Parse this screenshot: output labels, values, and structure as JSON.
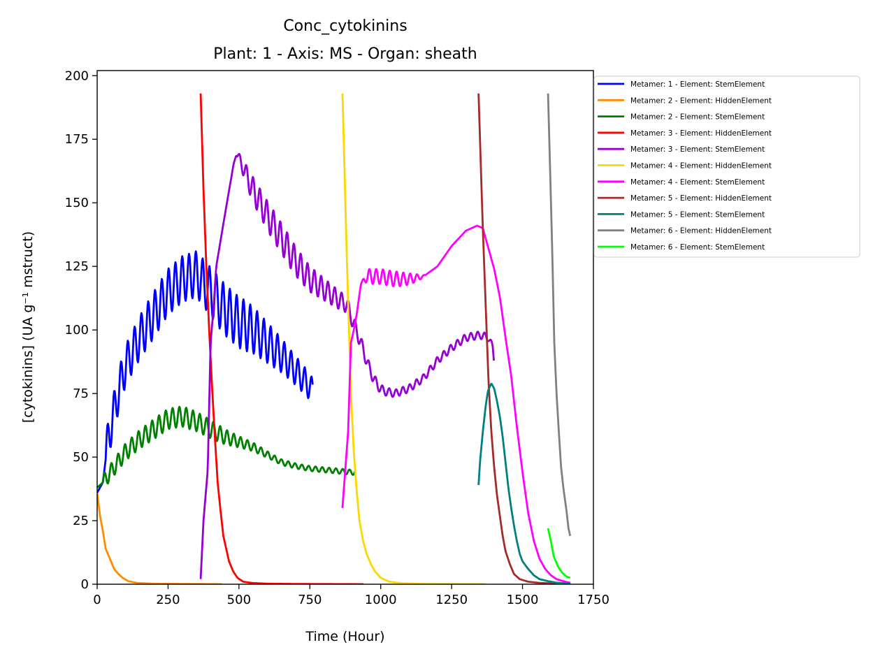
{
  "chart_data": {
    "type": "line",
    "title": "Conc_cytokinins",
    "subtitle": "Plant: 1 - Axis: MS - Organ: sheath",
    "xlabel": "Time (Hour)",
    "ylabel": "[cytokinins] (UA g⁻¹ mstruct)",
    "xlim": [
      0,
      1750
    ],
    "ylim": [
      0,
      202
    ],
    "x_ticks": [
      0,
      250,
      500,
      750,
      1000,
      1250,
      1500,
      1750
    ],
    "y_ticks": [
      0,
      25,
      50,
      75,
      100,
      125,
      150,
      175,
      200
    ],
    "x_tick_labels": [
      "0",
      "250",
      "500",
      "750",
      "1000",
      "1250",
      "1500",
      "1750"
    ],
    "y_tick_labels": [
      "0",
      "25",
      "50",
      "75",
      "100",
      "125",
      "150",
      "175",
      "200"
    ],
    "grid": false,
    "legend_position": "outside right, top",
    "series": [
      {
        "name": "Metamer: 1 - Element: StemElement",
        "color": "#0000ff",
        "osc": {
          "amp": [
            8,
            8,
            9,
            9,
            9,
            10,
            10,
            8,
            6,
            5
          ],
          "period": 24,
          "t0": 30,
          "t1": 760
        },
        "points": [
          [
            0,
            36
          ],
          [
            20,
            40
          ],
          [
            40,
            58
          ],
          [
            60,
            68
          ],
          [
            80,
            78
          ],
          [
            100,
            86
          ],
          [
            150,
            97
          ],
          [
            200,
            106
          ],
          [
            250,
            115
          ],
          [
            300,
            120
          ],
          [
            350,
            122
          ],
          [
            400,
            115
          ],
          [
            450,
            108
          ],
          [
            500,
            103
          ],
          [
            550,
            100
          ],
          [
            600,
            95
          ],
          [
            650,
            90
          ],
          [
            700,
            84
          ],
          [
            740,
            79
          ],
          [
            760,
            76
          ]
        ]
      },
      {
        "name": "Metamer: 2 - Element: HiddenElement",
        "color": "#ff8c00",
        "points": [
          [
            0,
            36
          ],
          [
            10,
            27
          ],
          [
            20,
            21
          ],
          [
            30,
            14
          ],
          [
            45,
            10
          ],
          [
            60,
            6
          ],
          [
            75,
            4
          ],
          [
            90,
            2.5
          ],
          [
            110,
            1.2
          ],
          [
            140,
            0.5
          ],
          [
            200,
            0.2
          ],
          [
            300,
            0.1
          ],
          [
            440,
            0
          ]
        ]
      },
      {
        "name": "Metamer: 2 - Element: StemElement",
        "color": "#008000",
        "osc": {
          "amp": [
            3,
            3.5,
            4,
            4,
            3.5,
            2,
            1.2,
            1,
            1,
            1
          ],
          "period": 24,
          "t0": 20,
          "t1": 910
        },
        "points": [
          [
            0,
            38
          ],
          [
            20,
            40
          ],
          [
            60,
            46
          ],
          [
            100,
            52
          ],
          [
            150,
            57
          ],
          [
            200,
            61
          ],
          [
            250,
            65
          ],
          [
            300,
            66
          ],
          [
            350,
            64
          ],
          [
            400,
            61
          ],
          [
            450,
            58
          ],
          [
            500,
            56
          ],
          [
            550,
            54
          ],
          [
            600,
            51
          ],
          [
            650,
            48
          ],
          [
            700,
            46.5
          ],
          [
            750,
            45.5
          ],
          [
            800,
            45
          ],
          [
            850,
            44.5
          ],
          [
            900,
            44
          ],
          [
            910,
            44
          ]
        ]
      },
      {
        "name": "Metamer: 3 - Element: HiddenElement",
        "color": "#ff0000",
        "points": [
          [
            365,
            193
          ],
          [
            375,
            155
          ],
          [
            385,
            125
          ],
          [
            395,
            100
          ],
          [
            405,
            78
          ],
          [
            415,
            58
          ],
          [
            425,
            40
          ],
          [
            435,
            29
          ],
          [
            445,
            19
          ],
          [
            455,
            14
          ],
          [
            465,
            9
          ],
          [
            480,
            5
          ],
          [
            495,
            2.5
          ],
          [
            515,
            1
          ],
          [
            545,
            0.5
          ],
          [
            600,
            0.2
          ],
          [
            700,
            0.1
          ],
          [
            940,
            0
          ]
        ]
      },
      {
        "name": "Metamer: 3 - Element: StemElement",
        "color": "#9400d3",
        "osc": {
          "amp": [
            0,
            0,
            5,
            6,
            6,
            5,
            4,
            3,
            2,
            1.5,
            1.5,
            1.5,
            1.5,
            1.5,
            1.5
          ],
          "period": 24,
          "t0": 400,
          "t1": 1400
        },
        "points": [
          [
            365,
            2
          ],
          [
            375,
            25
          ],
          [
            390,
            45
          ],
          [
            400,
            95
          ],
          [
            410,
            108
          ],
          [
            420,
            125
          ],
          [
            435,
            135
          ],
          [
            450,
            145
          ],
          [
            470,
            158
          ],
          [
            490,
            170
          ],
          [
            510,
            165
          ],
          [
            550,
            155
          ],
          [
            600,
            145
          ],
          [
            650,
            136
          ],
          [
            700,
            127
          ],
          [
            750,
            120
          ],
          [
            800,
            116
          ],
          [
            850,
            112
          ],
          [
            880,
            110
          ],
          [
            900,
            104
          ],
          [
            930,
            95
          ],
          [
            950,
            88
          ],
          [
            970,
            82
          ],
          [
            990,
            78
          ],
          [
            1010,
            76
          ],
          [
            1050,
            75
          ],
          [
            1100,
            77
          ],
          [
            1150,
            81
          ],
          [
            1200,
            88
          ],
          [
            1250,
            93
          ],
          [
            1300,
            97
          ],
          [
            1350,
            98
          ],
          [
            1380,
            97
          ],
          [
            1395,
            93
          ],
          [
            1400,
            88
          ]
        ]
      },
      {
        "name": "Metamer: 4 - Element: HiddenElement",
        "color": "#ffd700",
        "points": [
          [
            865,
            193
          ],
          [
            873,
            160
          ],
          [
            880,
            130
          ],
          [
            888,
            100
          ],
          [
            895,
            75
          ],
          [
            905,
            52
          ],
          [
            915,
            37
          ],
          [
            925,
            25
          ],
          [
            938,
            17
          ],
          [
            950,
            12
          ],
          [
            965,
            8
          ],
          [
            980,
            5
          ],
          [
            1000,
            2.5
          ],
          [
            1030,
            1
          ],
          [
            1070,
            0.4
          ],
          [
            1150,
            0.1
          ],
          [
            1370,
            0
          ]
        ]
      },
      {
        "name": "Metamer: 4 - Element: StemElement",
        "color": "#ff00ff",
        "osc": {
          "amp": [
            0,
            3,
            3,
            3,
            3,
            3,
            2.5,
            2,
            1,
            0,
            0,
            0,
            0,
            0,
            0,
            0,
            0,
            0
          ],
          "period": 24,
          "t0": 930,
          "t1": 1370
        },
        "points": [
          [
            865,
            30
          ],
          [
            875,
            45
          ],
          [
            885,
            60
          ],
          [
            895,
            95
          ],
          [
            905,
            100
          ],
          [
            915,
            106
          ],
          [
            930,
            118
          ],
          [
            950,
            121
          ],
          [
            1000,
            121
          ],
          [
            1050,
            120
          ],
          [
            1100,
            120
          ],
          [
            1150,
            121
          ],
          [
            1200,
            125
          ],
          [
            1250,
            133
          ],
          [
            1300,
            139
          ],
          [
            1340,
            141
          ],
          [
            1360,
            140
          ],
          [
            1380,
            132
          ],
          [
            1400,
            124
          ],
          [
            1420,
            113
          ],
          [
            1440,
            97
          ],
          [
            1460,
            82
          ],
          [
            1480,
            62
          ],
          [
            1500,
            44
          ],
          [
            1520,
            28
          ],
          [
            1540,
            17
          ],
          [
            1560,
            10
          ],
          [
            1580,
            6
          ],
          [
            1600,
            3.5
          ],
          [
            1620,
            2
          ],
          [
            1650,
            1
          ],
          [
            1670,
            0.5
          ]
        ]
      },
      {
        "name": "Metamer: 5 - Element: HiddenElement",
        "color": "#a52a2a",
        "points": [
          [
            1345,
            193
          ],
          [
            1352,
            168
          ],
          [
            1360,
            140
          ],
          [
            1370,
            110
          ],
          [
            1380,
            80
          ],
          [
            1390,
            60
          ],
          [
            1400,
            46
          ],
          [
            1410,
            35
          ],
          [
            1420,
            27
          ],
          [
            1430,
            19
          ],
          [
            1440,
            13
          ],
          [
            1455,
            8
          ],
          [
            1470,
            4
          ],
          [
            1490,
            2
          ],
          [
            1520,
            1
          ],
          [
            1560,
            0.5
          ],
          [
            1650,
            0.1
          ],
          [
            1670,
            0
          ]
        ]
      },
      {
        "name": "Metamer: 5 - Element: StemElement",
        "color": "#008080",
        "points": [
          [
            1345,
            39
          ],
          [
            1350,
            48
          ],
          [
            1360,
            60
          ],
          [
            1370,
            70
          ],
          [
            1378,
            76
          ],
          [
            1390,
            79
          ],
          [
            1400,
            77
          ],
          [
            1410,
            72
          ],
          [
            1420,
            66
          ],
          [
            1430,
            58
          ],
          [
            1440,
            48
          ],
          [
            1450,
            38
          ],
          [
            1460,
            30
          ],
          [
            1470,
            23
          ],
          [
            1480,
            17
          ],
          [
            1490,
            12
          ],
          [
            1500,
            9
          ],
          [
            1520,
            6
          ],
          [
            1540,
            3.5
          ],
          [
            1560,
            2
          ],
          [
            1590,
            1.2
          ],
          [
            1620,
            0.6
          ],
          [
            1670,
            0.2
          ]
        ]
      },
      {
        "name": "Metamer: 6 - Element: HiddenElement",
        "color": "#808080",
        "points": [
          [
            1590,
            193
          ],
          [
            1598,
            160
          ],
          [
            1605,
            130
          ],
          [
            1612,
            95
          ],
          [
            1620,
            75
          ],
          [
            1628,
            60
          ],
          [
            1636,
            46
          ],
          [
            1645,
            37
          ],
          [
            1655,
            29
          ],
          [
            1662,
            22
          ],
          [
            1668,
            19
          ]
        ]
      },
      {
        "name": "Metamer: 6 - Element: StemElement",
        "color": "#00ff00",
        "points": [
          [
            1590,
            22
          ],
          [
            1600,
            17
          ],
          [
            1610,
            11
          ],
          [
            1625,
            7
          ],
          [
            1640,
            4.5
          ],
          [
            1655,
            3
          ],
          [
            1668,
            2.5
          ]
        ]
      }
    ]
  }
}
